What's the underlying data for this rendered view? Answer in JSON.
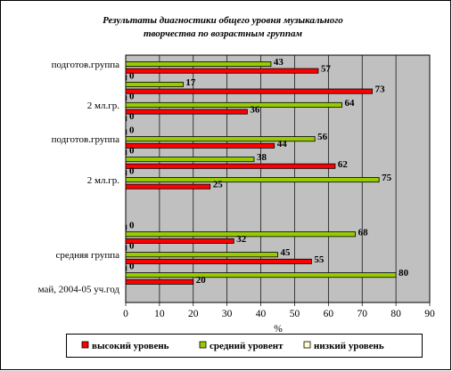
{
  "chart_data": {
    "type": "bar",
    "orientation": "horizontal",
    "title_lines": [
      "Результаты диагностики общего уровня музыкального",
      "творчества  по возрастным группам"
    ],
    "xlabel": "%",
    "xlim": [
      0,
      90
    ],
    "x_ticks": [
      "0",
      "10",
      "20",
      "30",
      "40",
      "50",
      "60",
      "70",
      "80",
      "90"
    ],
    "grid": true,
    "legend_position": "bottom",
    "rows": [
      {
        "label": "подготов.группа",
        "series": "medium",
        "value": 43
      },
      {
        "label": "",
        "series": "high",
        "value": 57
      },
      {
        "label": "",
        "series": "low",
        "value": 0
      },
      {
        "label": "",
        "series": "medium",
        "value": 17
      },
      {
        "label": "",
        "series": "high",
        "value": 73
      },
      {
        "label": "",
        "series": "low",
        "value": 0
      },
      {
        "label": "2 мл.гр.",
        "series": "medium",
        "value": 64
      },
      {
        "label": "",
        "series": "high",
        "value": 36
      },
      {
        "label": "",
        "series": "low",
        "value": 0
      },
      {
        "label": "",
        "series": "spacer",
        "value": null
      },
      {
        "label": "",
        "series": "low",
        "value": 0
      },
      {
        "label": "подготов.группа",
        "series": "medium",
        "value": 56
      },
      {
        "label": "",
        "series": "high",
        "value": 44
      },
      {
        "label": "",
        "series": "low",
        "value": 0
      },
      {
        "label": "",
        "series": "medium",
        "value": 38
      },
      {
        "label": "",
        "series": "high",
        "value": 62
      },
      {
        "label": "",
        "series": "low",
        "value": 0
      },
      {
        "label": "2 мл.гр.",
        "series": "medium",
        "value": 75
      },
      {
        "label": "",
        "series": "high",
        "value": 25
      },
      {
        "label": "",
        "series": "spacer",
        "value": null
      },
      {
        "label": "",
        "series": "spacer",
        "value": null
      },
      {
        "label": "",
        "series": "spacer",
        "value": null
      },
      {
        "label": "",
        "series": "spacer",
        "value": null
      },
      {
        "label": "",
        "series": "spacer",
        "value": null
      },
      {
        "label": "",
        "series": "low",
        "value": 0
      },
      {
        "label": "",
        "series": "medium",
        "value": 68
      },
      {
        "label": "",
        "series": "high",
        "value": 32
      },
      {
        "label": "",
        "series": "low",
        "value": 0
      },
      {
        "label": "средняя группа",
        "series": "medium",
        "value": 45
      },
      {
        "label": "",
        "series": "high",
        "value": 55
      },
      {
        "label": "",
        "series": "low",
        "value": 0
      },
      {
        "label": "",
        "series": "medium",
        "value": 80
      },
      {
        "label": "",
        "series": "high",
        "value": 20
      },
      {
        "label": "май, 2004-05 уч.год",
        "series": "spacer",
        "value": null
      }
    ],
    "legend": [
      {
        "key": "high",
        "name": "высокий уровень",
        "color": "#ff0000"
      },
      {
        "key": "medium",
        "name": "средний уровент",
        "color": "#99cc00"
      },
      {
        "key": "low",
        "name": "низкий уровень",
        "color": "#ffffcc"
      }
    ]
  }
}
